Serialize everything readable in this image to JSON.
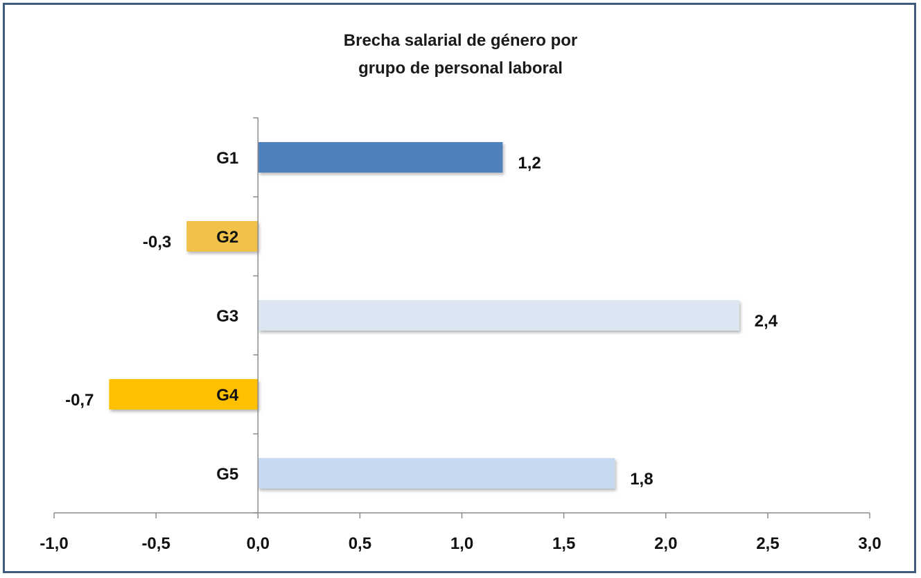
{
  "chart_data": {
    "type": "bar",
    "orientation": "horizontal",
    "title_lines": [
      "Brecha salarial de género por",
      "grupo de personal laboral"
    ],
    "categories": [
      "G1",
      "G2",
      "G3",
      "G4",
      "G5"
    ],
    "values": [
      1.2,
      -0.35,
      2.36,
      -0.73,
      1.75
    ],
    "data_labels": [
      "1,2",
      "-0,3",
      "2,4",
      "-0,7",
      "1,8"
    ],
    "bar_colors": [
      "#4f81bd",
      "#f0c24a",
      "#dce6f2",
      "#ffc000",
      "#c6d9f1"
    ],
    "xlim": [
      -1.0,
      3.0
    ],
    "xticks": [
      -1.0,
      -0.5,
      0.0,
      0.5,
      1.0,
      1.5,
      2.0,
      2.5,
      3.0
    ],
    "xtick_labels": [
      "-1,0",
      "-0,5",
      "0,0",
      "0,5",
      "1,0",
      "1,5",
      "2,0",
      "2,5",
      "3,0"
    ],
    "xlabel": "",
    "ylabel": "",
    "grid": false,
    "legend": "none"
  }
}
